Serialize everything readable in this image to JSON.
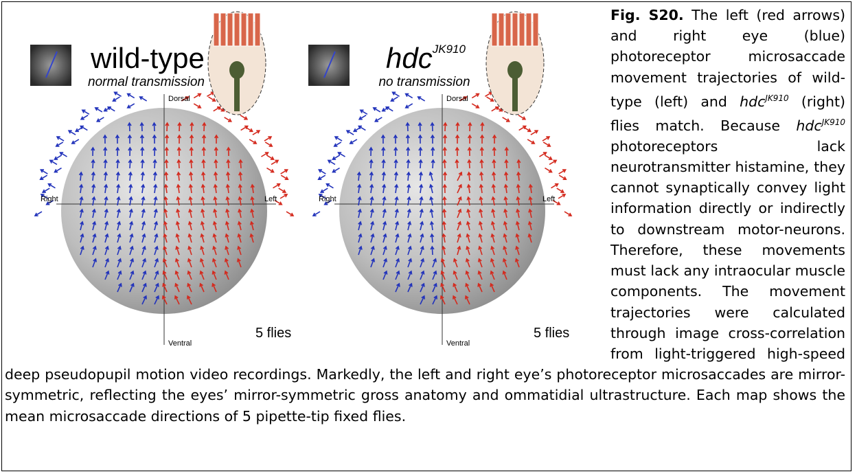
{
  "figure": {
    "panels": [
      {
        "title": "wild-type",
        "subtitle": "normal transmission",
        "dorsal": "Dorsal",
        "ventral": "Ventral",
        "right": "Right",
        "left": "Left",
        "count": "5 flies"
      },
      {
        "title": "hdc",
        "title_sup": "JK910",
        "subtitle": "no transmission",
        "dorsal": "Dorsal",
        "ventral": "Ventral",
        "right": "Right",
        "left": "Left",
        "count": "5 flies"
      }
    ]
  },
  "caption": {
    "label": "Fig. S20.",
    "runs": [
      " The left (red arrows) and right eye (blue) photoreceptor microsaccade movement trajectories of wild-type (left) and ",
      "hdc",
      "JK910",
      " (right) flies match. Because ",
      "hdc",
      "JK910",
      " photoreceptors lack neurotransmitter histamine, they cannot synaptically convey light information directly or indirectly to downstream motor-neurons. Therefore, these movements must lack any intraocular muscle components. The movement trajectories were calculated through image cross-correlation from light-triggered high-speed deep pseudopupil motion video recordings. Markedly, the left and right eye’s photoreceptor microsaccades are mirror-symmetric, reflecting the eyes’ mirror-symmetric gross anatomy and ommatidial ultrastructure. Each map shows the mean microsaccade directions of 5 pipette-tip fixed flies."
    ]
  }
}
